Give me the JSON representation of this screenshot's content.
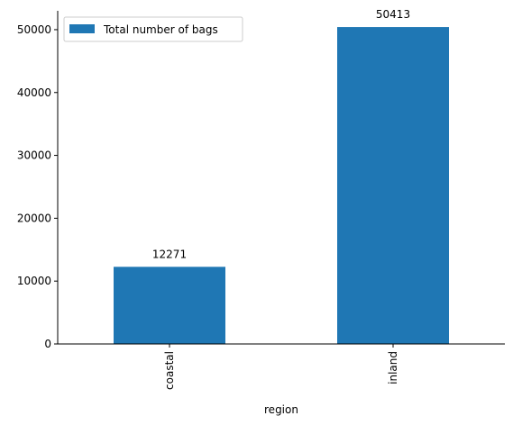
{
  "chart_data": {
    "type": "bar",
    "categories": [
      "coastal",
      "inland"
    ],
    "series": [
      {
        "name": "Total number of bags",
        "values": [
          12271,
          50413
        ]
      }
    ],
    "data_labels": [
      "12271",
      "50413"
    ],
    "xlabel": "region",
    "ylabel": "",
    "ylim": [
      0,
      53000
    ],
    "yticks": [
      0,
      10000,
      20000,
      30000,
      40000,
      50000
    ],
    "grid": false,
    "legend_position": "top-left",
    "colors": {
      "bar": "#1f77b4"
    }
  }
}
